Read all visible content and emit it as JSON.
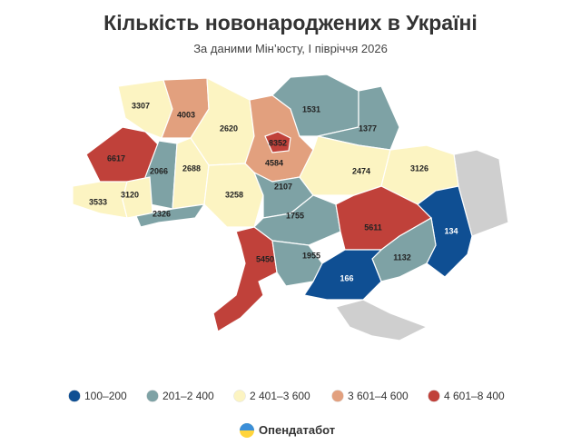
{
  "title": "Кількість новонароджених в Україні",
  "subtitle": "За даними Мін’юсту, І півріччя 2026",
  "legend": [
    {
      "label": "100–200",
      "min": 100,
      "max": 200,
      "color": "#0f4f93"
    },
    {
      "label": "201–2 400",
      "min": 201,
      "max": 2400,
      "color": "#7ea2a5"
    },
    {
      "label": "2 401–3 600",
      "min": 2401,
      "max": 3600,
      "color": "#fcf4c2"
    },
    {
      "label": "3 601–4 600",
      "min": 3601,
      "max": 4600,
      "color": "#e2a07e"
    },
    {
      "label": "4 601–8 400",
      "min": 4601,
      "max": 8400,
      "color": "#c0413a"
    }
  ],
  "regions": [
    {
      "value": 3307
    },
    {
      "value": 4003
    },
    {
      "value": 2620
    },
    {
      "value": 4584
    },
    {
      "value": 8352
    },
    {
      "value": 1531
    },
    {
      "value": 1377
    },
    {
      "value": 6617
    },
    {
      "value": 2066
    },
    {
      "value": 2688
    },
    {
      "value": 3258
    },
    {
      "value": 3533
    },
    {
      "value": 3120
    },
    {
      "value": 2326
    },
    {
      "value": 2107
    },
    {
      "value": 2474
    },
    {
      "value": 3126
    },
    {
      "value": 1755
    },
    {
      "value": 5611
    },
    {
      "value": 134
    },
    {
      "value": 1132
    },
    {
      "value": 5450
    },
    {
      "value": 1955
    },
    {
      "value": 166
    }
  ],
  "brand": "Опендатабот"
}
